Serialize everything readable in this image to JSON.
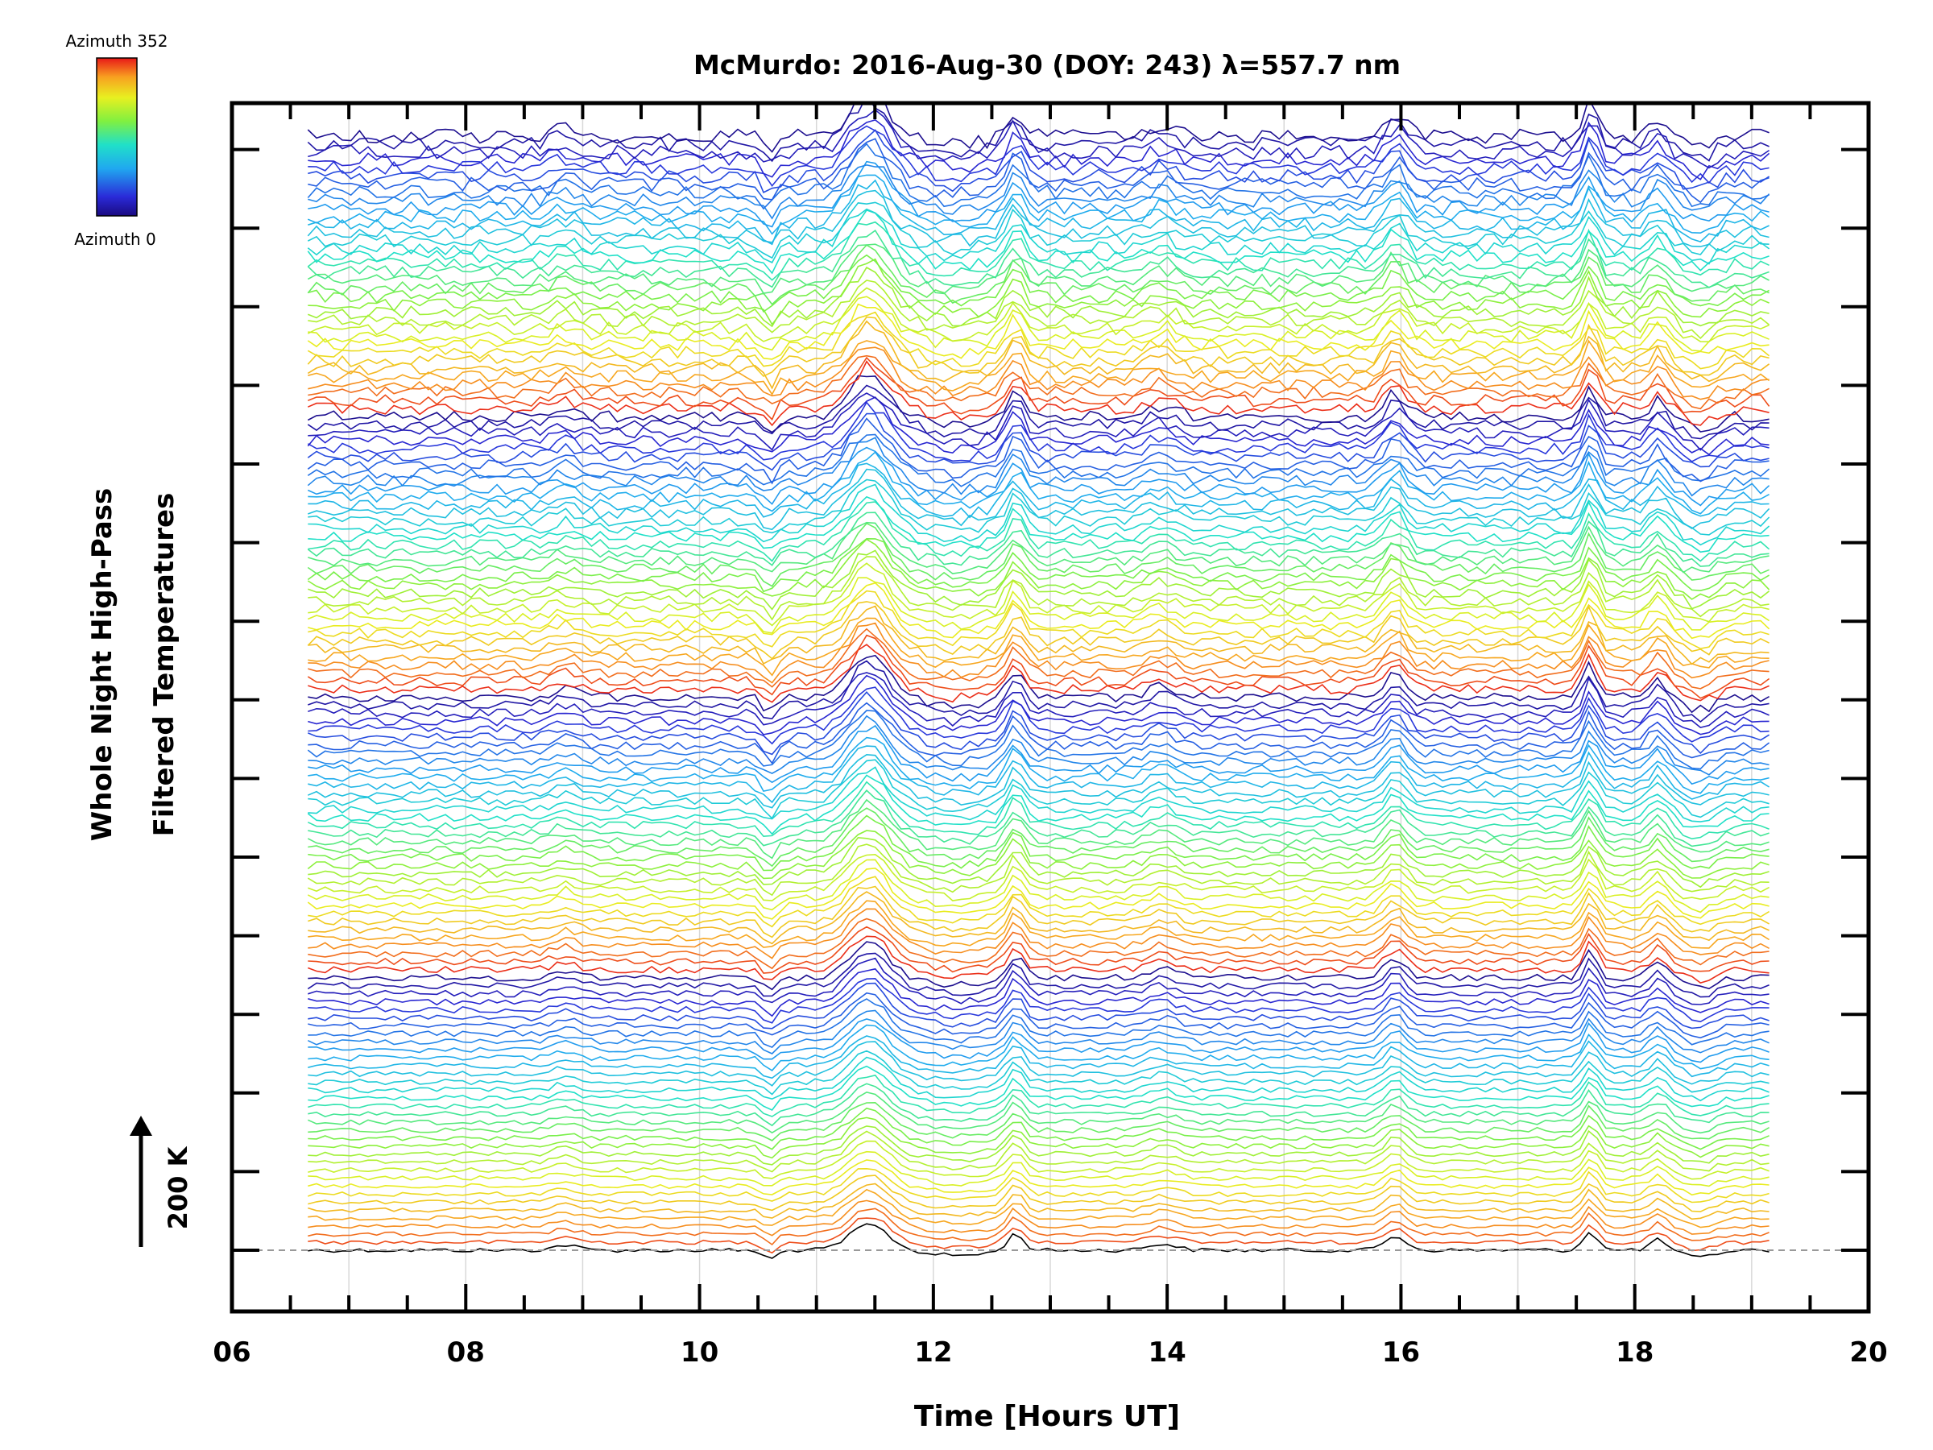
{
  "chart_data": {
    "type": "line",
    "title": "McMurdo: 2016-Aug-30 (DOY: 243) λ=557.7 nm",
    "xlabel": "Time [Hours UT]",
    "ylabel_line1": "Whole Night High-Pass",
    "ylabel_line2": "Filtered Temperatures",
    "xlim": [
      6,
      20
    ],
    "x_tick_labels": [
      "06",
      "08",
      "10",
      "12",
      "14",
      "16",
      "18",
      "20"
    ],
    "x_tick_values": [
      6,
      8,
      10,
      12,
      14,
      16,
      18,
      20
    ],
    "x_minor_step": 0.5,
    "y_ticks": 15,
    "data_x_range": [
      6.65,
      19.15
    ],
    "trace_count": 140,
    "trace_spacing": "stacked offsets, each trace shifted upward",
    "scale_bar_label": "200 K",
    "colorbar": {
      "top_label": "Azimuth 352",
      "bottom_label": "Azimuth 0",
      "colormap": "rainbow"
    },
    "common_features": [
      {
        "time": 10.6,
        "shape": "dip"
      },
      {
        "time": 11.45,
        "shape": "large peak"
      },
      {
        "time": 12.7,
        "shape": "peak"
      },
      {
        "time": 13.95,
        "shape": "small peak"
      },
      {
        "time": 15.95,
        "shape": "peak"
      },
      {
        "time": 17.6,
        "shape": "sharp peak"
      },
      {
        "time": 18.2,
        "shape": "peak"
      }
    ]
  }
}
